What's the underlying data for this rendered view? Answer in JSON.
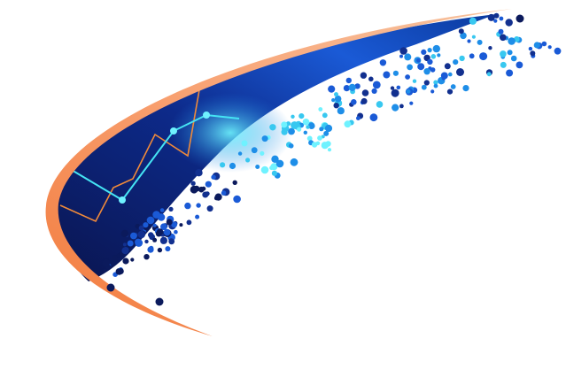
{
  "colors": {
    "background": "#ffffff",
    "swoosh_orange": "#f4894f",
    "deep_navy": "#0b1a5c",
    "mid_blue": "#1554c8",
    "cyan_glow": "#38e0f0",
    "trend_line_orange": "#f08a3a"
  },
  "icons": [
    "abstract-data-swoosh"
  ]
}
